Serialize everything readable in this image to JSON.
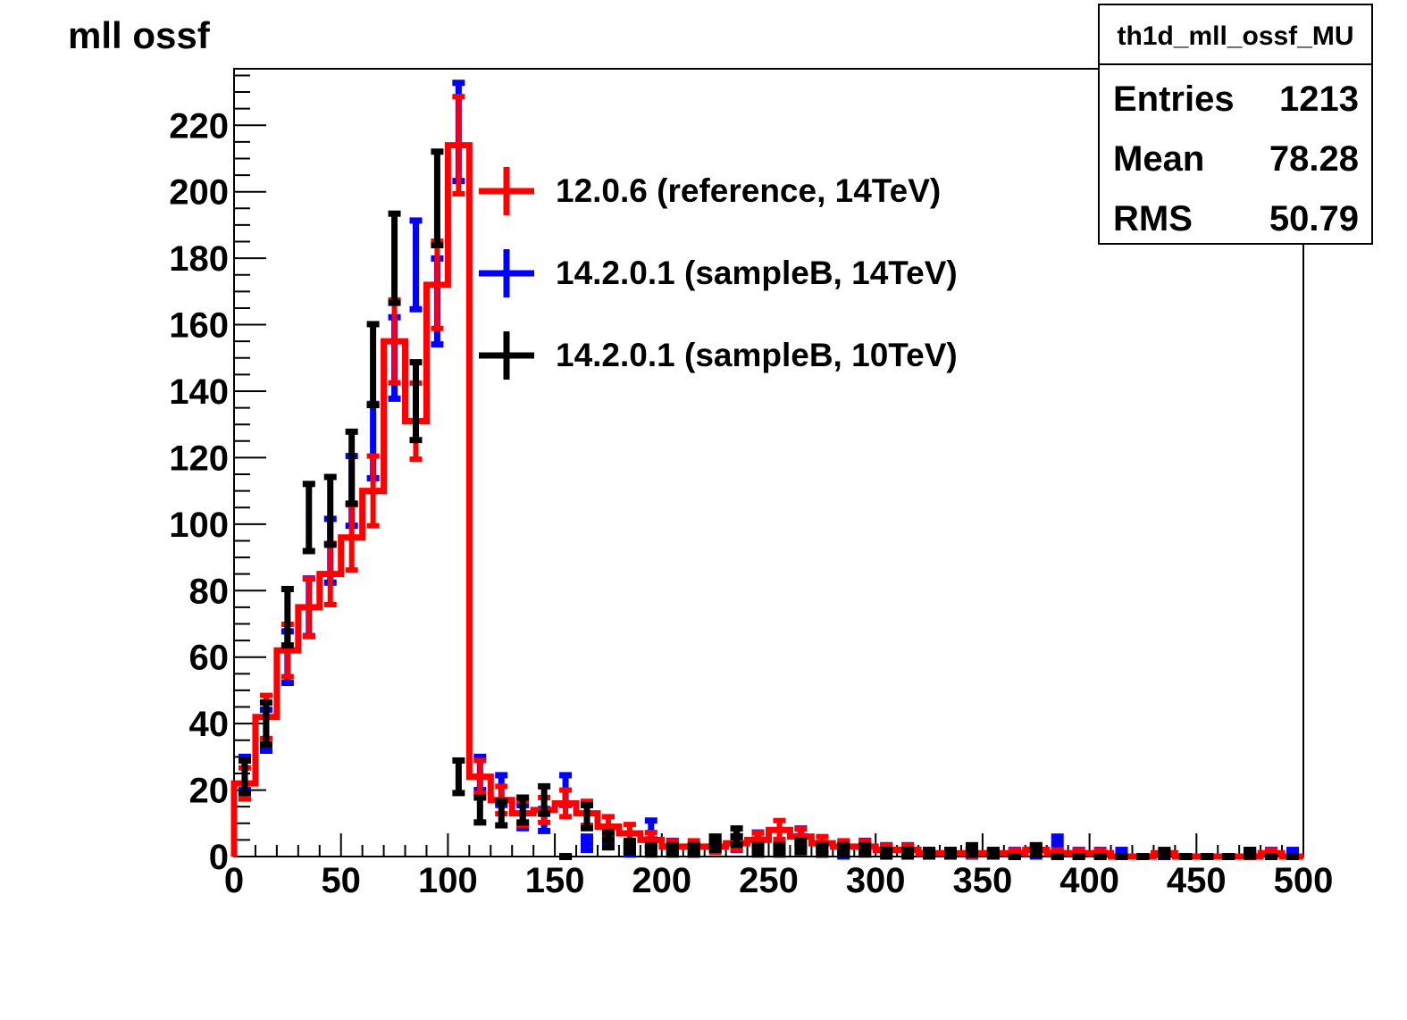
{
  "chart_data": {
    "type": "histogram",
    "title": "mll ossf",
    "xlim": [
      0,
      500
    ],
    "ylim": [
      0,
      237
    ],
    "bin_width": 10,
    "x_ticks": [
      0,
      50,
      100,
      150,
      200,
      250,
      300,
      350,
      400,
      450,
      500
    ],
    "y_ticks": [
      0,
      20,
      40,
      60,
      80,
      100,
      120,
      140,
      160,
      180,
      200,
      220
    ],
    "legend_position": "top-center",
    "stats_box": {
      "name": "th1d_mll_ossf_MU",
      "rows": [
        {
          "label": "Entries",
          "value": "1213"
        },
        {
          "label": "Mean",
          "value": "78.28"
        },
        {
          "label": "RMS",
          "value": "50.79"
        }
      ]
    },
    "series": [
      {
        "name": "12.0.6 (reference, 14TeV)",
        "color": "#ff0000",
        "style": "step-with-errors",
        "values": [
          22,
          42,
          62,
          75,
          85,
          96,
          110,
          155,
          131,
          172,
          214,
          24,
          17,
          13,
          14,
          16,
          13,
          9,
          7,
          5,
          3,
          3,
          3,
          4,
          5,
          8,
          6,
          4,
          3,
          3,
          2,
          2,
          1,
          1,
          1,
          1,
          1,
          2,
          1,
          1,
          1,
          0,
          0,
          1,
          0,
          0,
          0,
          0,
          1,
          0
        ]
      },
      {
        "name": "14.2.0.1 (sampleB, 14TeV)",
        "color": "#0000ff",
        "style": "error-bars",
        "values": [
          25,
          38,
          60,
          75,
          92,
          110,
          125,
          150,
          178,
          167,
          218,
          25,
          20,
          12,
          11,
          20,
          4,
          6,
          2,
          8,
          3,
          2,
          4,
          4,
          5,
          3,
          6,
          2,
          1,
          3,
          2,
          2,
          1,
          1,
          1,
          1,
          1,
          1,
          4,
          1,
          1,
          1,
          0,
          0,
          0,
          0,
          0,
          1,
          1,
          1
        ]
      },
      {
        "name": "14.2.0.1 (sampleB, 10TeV)",
        "color": "#000000",
        "style": "error-bars",
        "values": [
          24,
          40,
          72,
          102,
          104,
          117,
          148,
          180,
          137,
          198,
          24,
          14,
          13,
          14,
          17,
          0,
          12,
          5,
          3,
          2,
          2,
          2,
          4,
          6,
          2,
          2,
          3,
          2,
          2,
          2,
          1,
          1,
          1,
          1,
          2,
          1,
          0,
          2,
          0,
          0,
          0,
          0,
          0,
          1,
          0,
          0,
          0,
          1,
          0,
          0
        ]
      }
    ]
  }
}
